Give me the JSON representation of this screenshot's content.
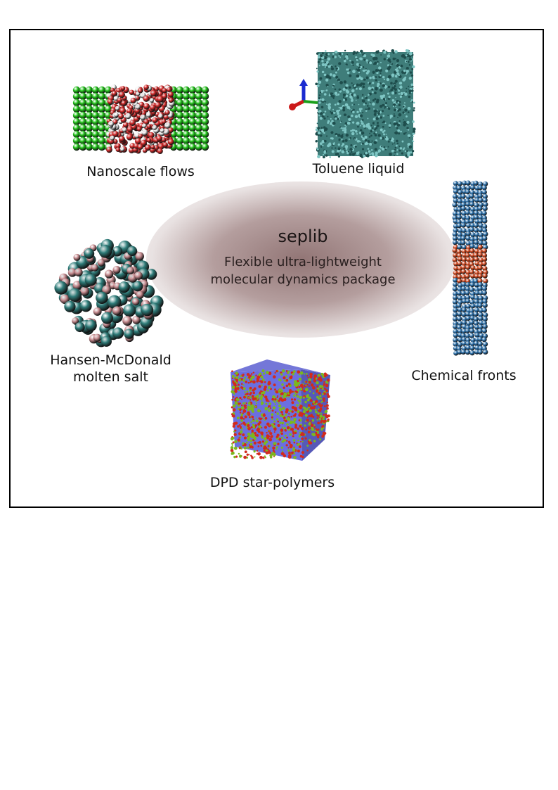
{
  "center": {
    "title": "seplib",
    "subtitle_line1": "Flexible ultra-lightweight",
    "subtitle_line2": "molecular dynamics package"
  },
  "panels": {
    "nanoscale": {
      "label": "Nanoscale flows"
    },
    "toluene": {
      "label": "Toluene liquid"
    },
    "salt": {
      "label_line1": "Hansen-McDonald",
      "label_line2": "molten salt"
    },
    "fronts": {
      "label": "Chemical fronts"
    },
    "dpd": {
      "label": "DPD star-polymers"
    }
  },
  "colors": {
    "wall_green": "#22c21a",
    "water_red": "#d42a2a",
    "water_white": "#f2f2f2",
    "toluene_teal": "#2e6e6c",
    "salt_teal": "#2f7d7a",
    "salt_pink": "#c88c90",
    "front_blue": "#2f73ad",
    "front_orange": "#d24a22",
    "dpd_blue": "#6b6fe0",
    "dpd_red": "#d22a1c",
    "dpd_green": "#7bb81e"
  }
}
